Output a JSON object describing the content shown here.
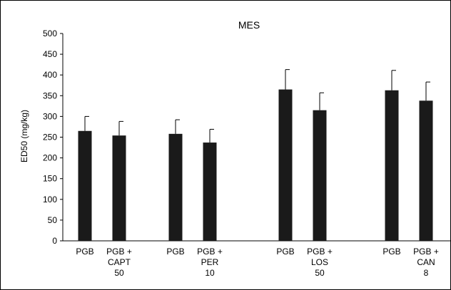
{
  "chart_data": {
    "type": "bar",
    "title": "MES",
    "xlabel": "",
    "ylabel": "ED50 (mg/kg)",
    "ylim": [
      0,
      500
    ],
    "yticks": [
      0,
      50,
      100,
      150,
      200,
      250,
      300,
      350,
      400,
      450,
      500
    ],
    "grid": false,
    "legend": "none",
    "bar_color": "#1a1a1a",
    "groups": [
      {
        "bars": [
          {
            "label": [
              "PGB"
            ],
            "value": 265,
            "error": 35
          },
          {
            "label": [
              "PGB +",
              "CAPT",
              "50"
            ],
            "value": 254,
            "error": 34
          }
        ]
      },
      {
        "bars": [
          {
            "label": [
              "PGB"
            ],
            "value": 258,
            "error": 34
          },
          {
            "label": [
              "PGB +",
              "PER",
              "10"
            ],
            "value": 237,
            "error": 32
          }
        ]
      },
      {
        "bars": [
          {
            "label": [
              "PGB"
            ],
            "value": 365,
            "error": 48
          },
          {
            "label": [
              "PGB +",
              "LOS",
              "50"
            ],
            "value": 315,
            "error": 42
          }
        ]
      },
      {
        "bars": [
          {
            "label": [
              "PGB"
            ],
            "value": 363,
            "error": 48
          },
          {
            "label": [
              "PGB +",
              "CAN",
              "8"
            ],
            "value": 338,
            "error": 45
          }
        ]
      }
    ]
  }
}
